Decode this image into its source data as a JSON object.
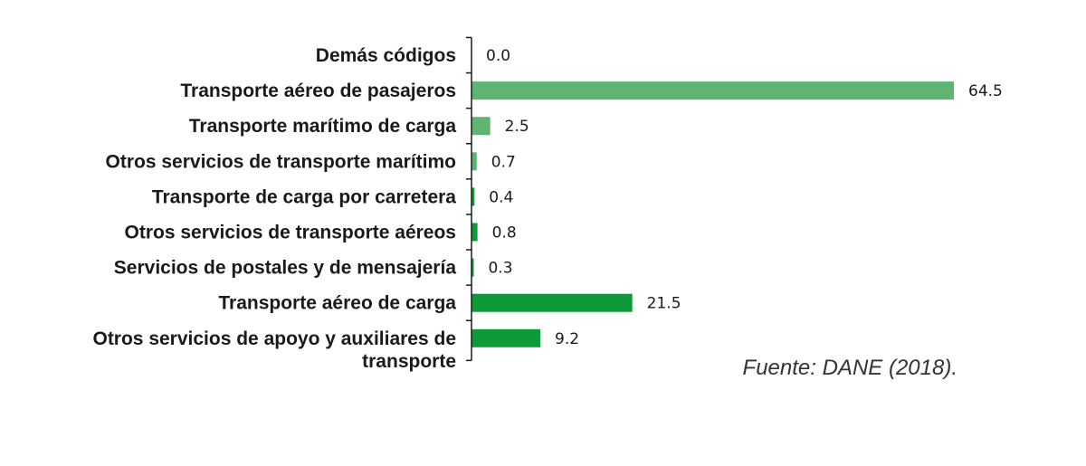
{
  "chart_data": {
    "type": "bar",
    "orientation": "horizontal",
    "categories": [
      [
        "Demás códigos"
      ],
      [
        "Transporte aéreo de pasajeros"
      ],
      [
        "Transporte marítimo de carga"
      ],
      [
        "Otros servicios de transporte marítimo"
      ],
      [
        "Transporte de carga por carretera"
      ],
      [
        "Otros servicios de transporte aéreos"
      ],
      [
        "Servicios de postales y de mensajería"
      ],
      [
        "Transporte aéreo de carga"
      ],
      [
        "Otros servicios de apoyo y auxiliares de",
        "transporte"
      ]
    ],
    "values": [
      0.0,
      64.5,
      2.5,
      0.7,
      0.4,
      0.8,
      0.3,
      21.5,
      9.2
    ],
    "value_labels": [
      "0.0",
      "64.5",
      "2.5",
      "0.7",
      "0.4",
      "0.8",
      "0.3",
      "21.5",
      "9.2"
    ],
    "colors": [
      "#5fb56f",
      "#5fb56f",
      "#5fb56f",
      "#5fb56f",
      "#0f9a3a",
      "#0f9a3a",
      "#0f9a3a",
      "#0f9a3a",
      "#0f9a3a"
    ],
    "xlim": [
      0,
      64.5
    ],
    "grid": false,
    "legend": "none"
  },
  "source_note": "Fuente: DANE (2018)."
}
